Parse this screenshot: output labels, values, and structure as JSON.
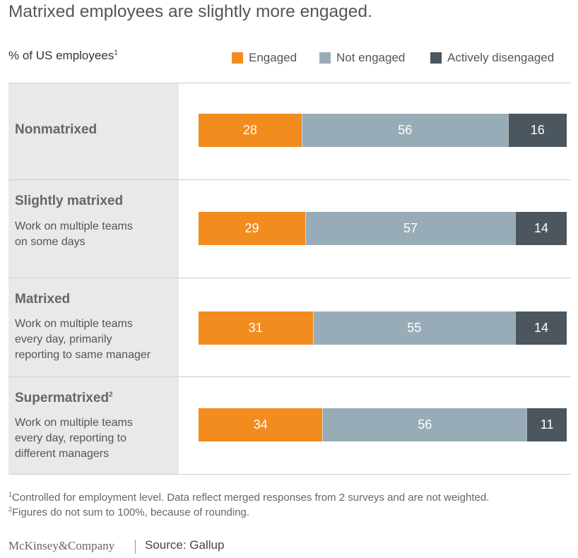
{
  "header": {
    "title": "Matrixed employees are slightly more engaged.",
    "unit_label": "% of US employees",
    "unit_footnote": "1"
  },
  "legend": [
    {
      "label": "Engaged",
      "color": "#f28c1e"
    },
    {
      "label": "Not engaged",
      "color": "#98acb8"
    },
    {
      "label": "Actively disengaged",
      "color": "#4b565e"
    }
  ],
  "rows": [
    {
      "title": "Nonmatrixed",
      "note": "",
      "desc": ""
    },
    {
      "title": "Slightly matrixed",
      "note": "",
      "desc": "Work on multiple teams\non some days"
    },
    {
      "title": "Matrixed",
      "note": "",
      "desc": "Work on multiple teams\nevery day, primarily\nreporting to same manager"
    },
    {
      "title": "Supermatrixed",
      "note": "2",
      "desc": "Work on multiple teams\nevery day, reporting to\ndifferent managers"
    }
  ],
  "chart_data": {
    "type": "bar",
    "orientation": "horizontal",
    "stacked": true,
    "title": "Matrixed employees are slightly more engaged.",
    "ylabel": "% of US employees",
    "categories": [
      "Nonmatrixed",
      "Slightly matrixed",
      "Matrixed",
      "Supermatrixed"
    ],
    "series": [
      {
        "name": "Engaged",
        "values": [
          28,
          29,
          31,
          34
        ]
      },
      {
        "name": "Not engaged",
        "values": [
          56,
          57,
          55,
          56
        ]
      },
      {
        "name": "Actively disengaged",
        "values": [
          16,
          14,
          14,
          11
        ]
      }
    ],
    "xlim": [
      0,
      100
    ],
    "legend_position": "top-right"
  },
  "footnotes": [
    {
      "mark": "1",
      "text": "Controlled for employment level. Data reflect merged responses from 2 surveys and are not weighted."
    },
    {
      "mark": "2",
      "text": "Figures do not sum to 100%, because of rounding."
    }
  ],
  "footer": {
    "brand": "McKinsey&Company",
    "source": "Source: Gallup"
  }
}
